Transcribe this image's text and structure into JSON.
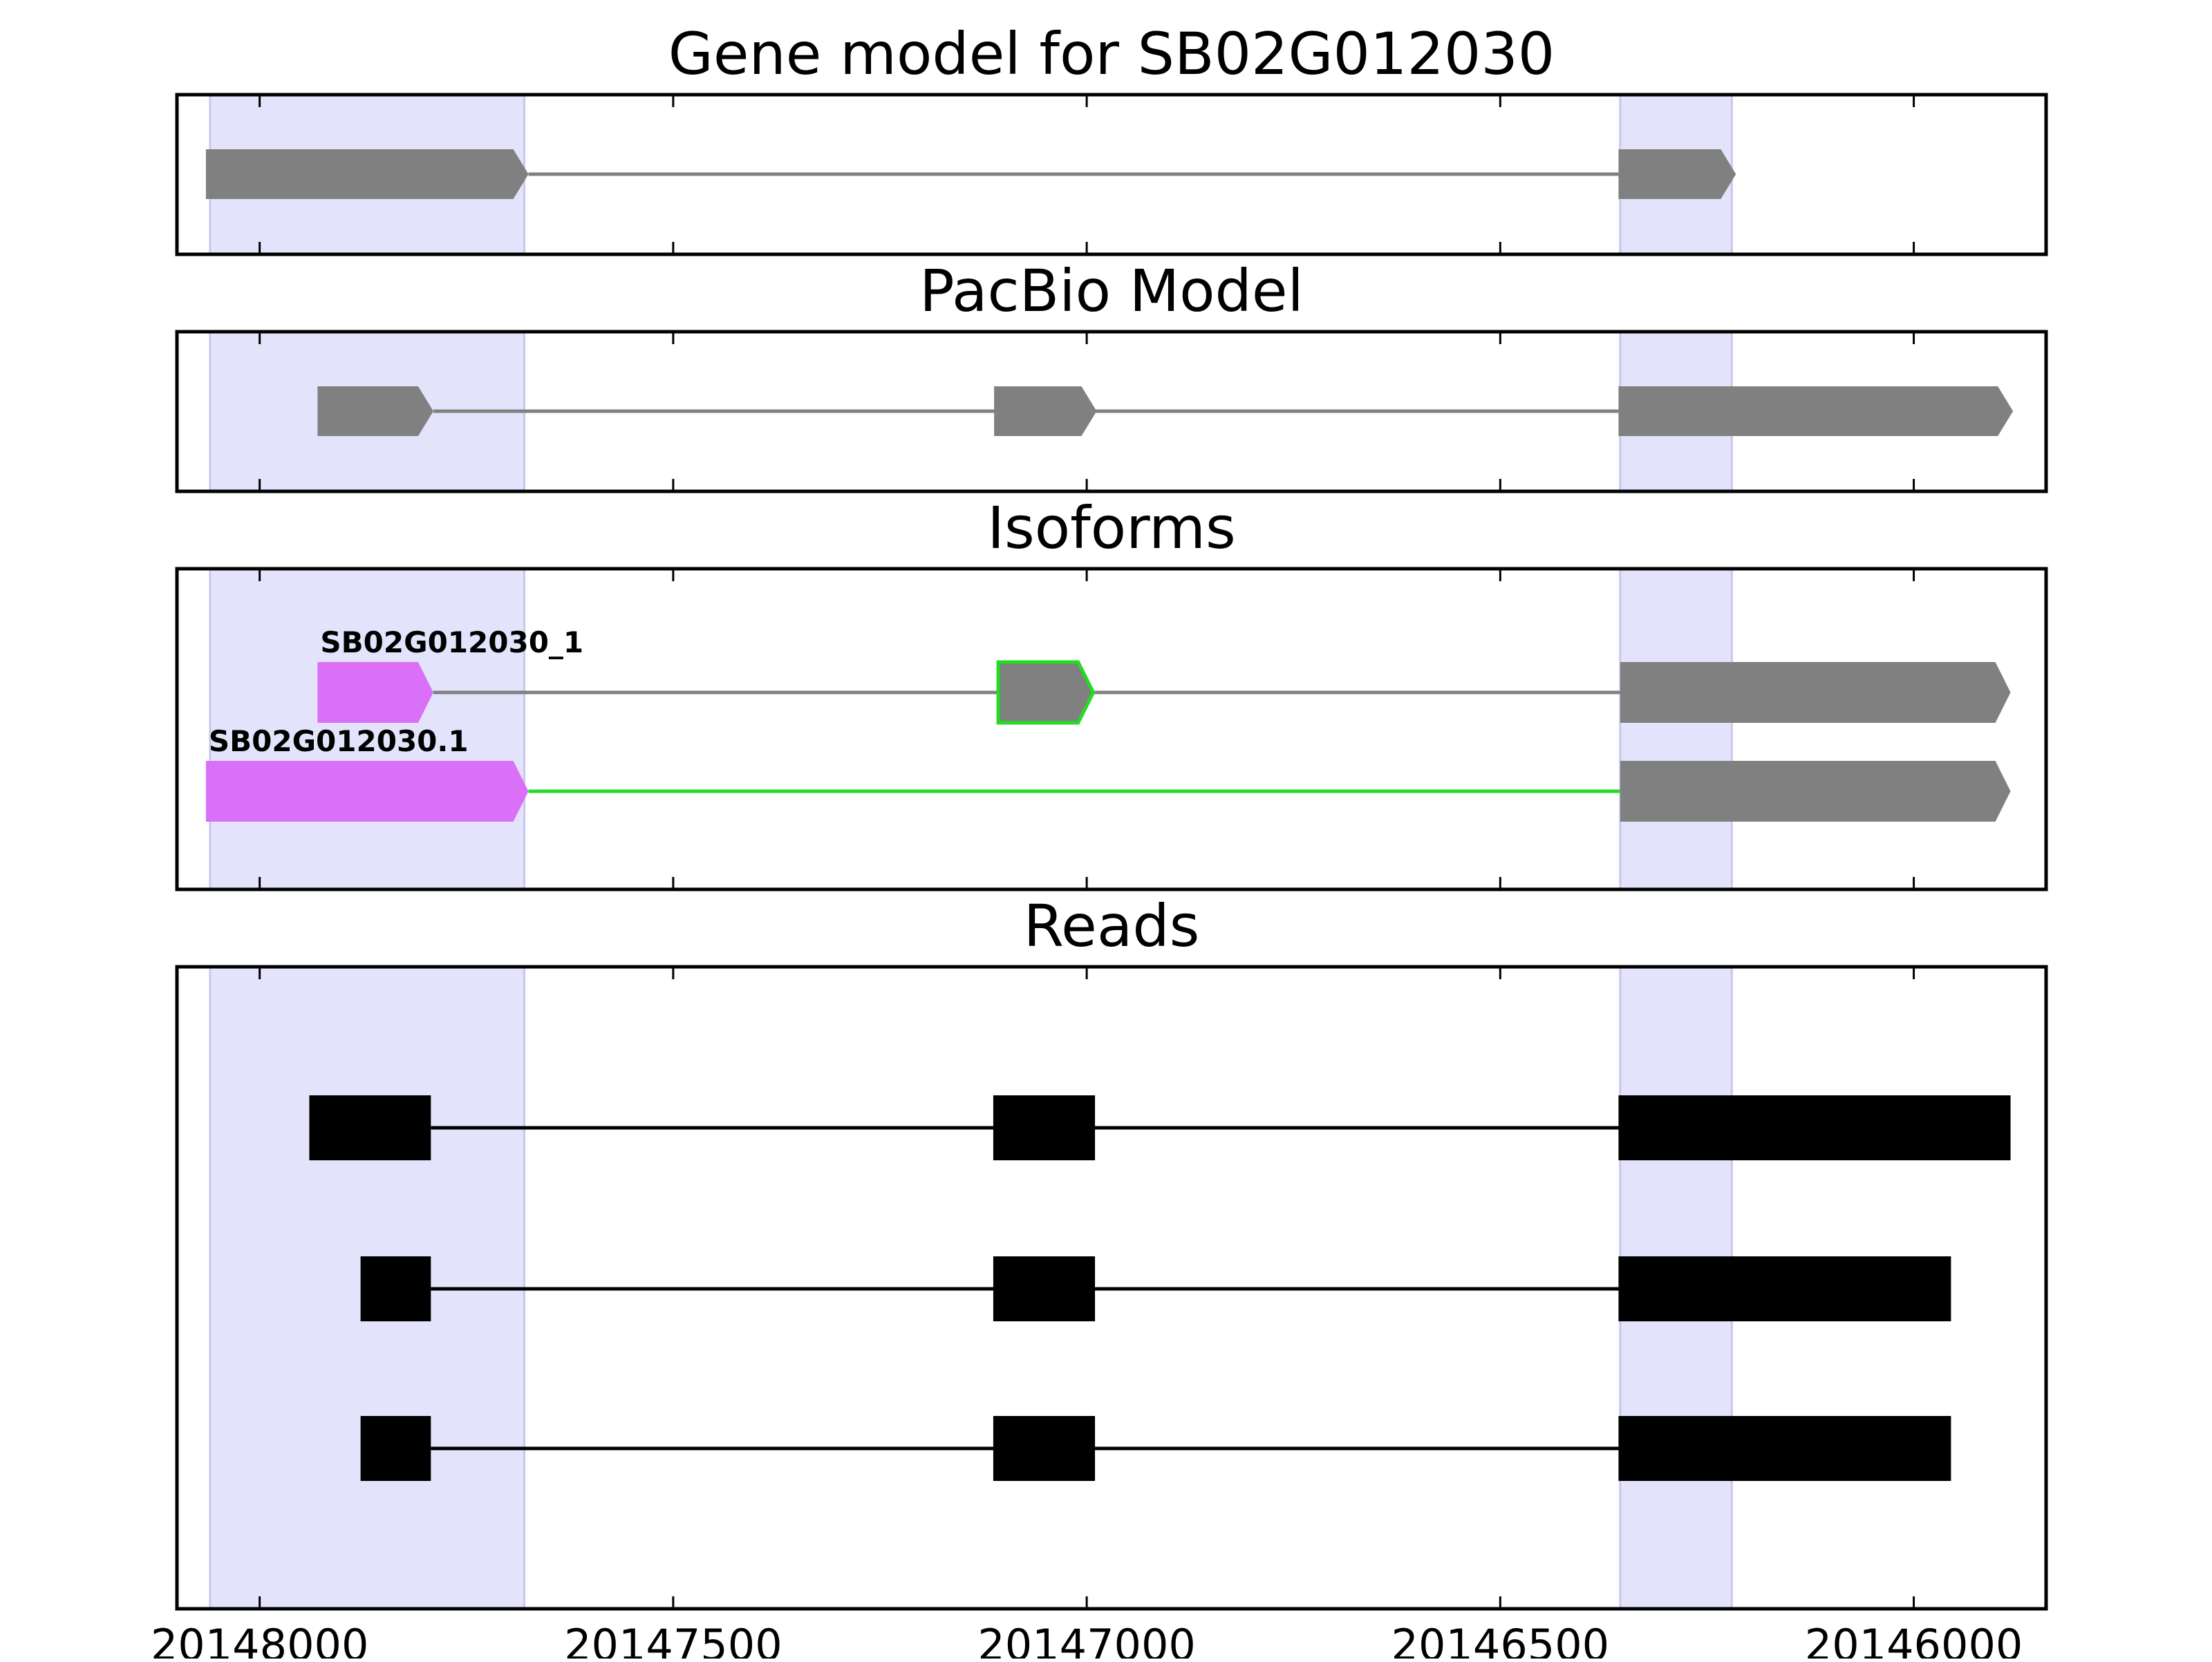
{
  "panels": [
    {
      "key": "gene",
      "title": "Gene model for SB02G012030",
      "tracks": [
        {
          "label": "",
          "intron_color": "#808080",
          "exons": [
            {
              "start": 20148065,
              "end": 20147675,
              "fill": "#808080",
              "stroke": "none",
              "arrow": true
            },
            {
              "start": 20146357,
              "end": 20146215,
              "fill": "#808080",
              "stroke": "none",
              "arrow": true
            }
          ]
        }
      ]
    },
    {
      "key": "pacbio",
      "title": "PacBio Model",
      "tracks": [
        {
          "label": "",
          "intron_color": "#808080",
          "exons": [
            {
              "start": 20147930,
              "end": 20147790,
              "fill": "#808080",
              "stroke": "none",
              "arrow": true
            },
            {
              "start": 20147112,
              "end": 20146988,
              "fill": "#808080",
              "stroke": "none",
              "arrow": true
            },
            {
              "start": 20146357,
              "end": 20145880,
              "fill": "#808080",
              "stroke": "none",
              "arrow": true
            }
          ]
        }
      ]
    },
    {
      "key": "isoforms",
      "title": "Isoforms",
      "tracks": [
        {
          "label": "SB02G012030_1",
          "intron_color": "#808080",
          "exons": [
            {
              "start": 20147930,
              "end": 20147790,
              "fill": "#da70f7",
              "stroke": "none",
              "arrow": true
            },
            {
              "start": 20147107,
              "end": 20146992,
              "fill": "#808080",
              "stroke": "#22dd22",
              "arrow": true
            },
            {
              "start": 20146355,
              "end": 20145883,
              "fill": "#808080",
              "stroke": "none",
              "arrow": true
            }
          ]
        },
        {
          "label": "SB02G012030.1",
          "intron_color": "#22dd22",
          "exons": [
            {
              "start": 20148065,
              "end": 20147675,
              "fill": "#da70f7",
              "stroke": "none",
              "arrow": true
            },
            {
              "start": 20146355,
              "end": 20145883,
              "fill": "#808080",
              "stroke": "none",
              "arrow": true
            }
          ]
        }
      ]
    },
    {
      "key": "reads",
      "title": "Reads",
      "tracks": [
        {
          "label": "",
          "intron_color": "#000000",
          "exons": [
            {
              "start": 20147940,
              "end": 20147793,
              "fill": "#000000",
              "stroke": "none",
              "arrow": false
            },
            {
              "start": 20147113,
              "end": 20146990,
              "fill": "#000000",
              "stroke": "none",
              "arrow": false
            },
            {
              "start": 20146357,
              "end": 20145883,
              "fill": "#000000",
              "stroke": "none",
              "arrow": false
            }
          ]
        },
        {
          "label": "",
          "intron_color": "#000000",
          "exons": [
            {
              "start": 20147878,
              "end": 20147793,
              "fill": "#000000",
              "stroke": "none",
              "arrow": false
            },
            {
              "start": 20147113,
              "end": 20146990,
              "fill": "#000000",
              "stroke": "none",
              "arrow": false
            },
            {
              "start": 20146357,
              "end": 20145955,
              "fill": "#000000",
              "stroke": "none",
              "arrow": false
            }
          ]
        },
        {
          "label": "",
          "intron_color": "#000000",
          "exons": [
            {
              "start": 20147878,
              "end": 20147793,
              "fill": "#000000",
              "stroke": "none",
              "arrow": false
            },
            {
              "start": 20147113,
              "end": 20146990,
              "fill": "#000000",
              "stroke": "none",
              "arrow": false
            },
            {
              "start": 20146357,
              "end": 20145955,
              "fill": "#000000",
              "stroke": "none",
              "arrow": false
            }
          ]
        }
      ]
    }
  ],
  "highlight_regions": [
    {
      "start": 20148060,
      "end": 20147680
    },
    {
      "start": 20146355,
      "end": 20146220
    }
  ],
  "highlight_color": "#e3e3fb",
  "axis": {
    "reversed": true,
    "xlim": [
      20148100,
      20145840
    ],
    "ticks": [
      20148000,
      20147500,
      20147000,
      20146500,
      20146000
    ],
    "tick_labels": [
      "20148000",
      "20147500",
      "20147000",
      "20146500",
      "20146000"
    ]
  }
}
